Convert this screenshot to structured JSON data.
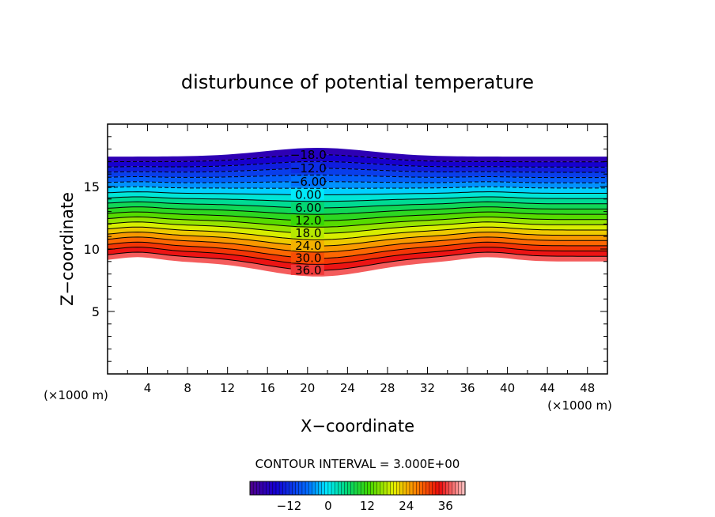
{
  "chart_data": {
    "type": "contour",
    "title": "disturbunce of potential temperature",
    "xlabel": "X−coordinate",
    "ylabel": "Z−coordinate",
    "x_unit": "(×1000 m)",
    "y_unit": "(×1000 m)",
    "xlim": [
      0,
      50
    ],
    "ylim": [
      0,
      20
    ],
    "x_ticks": [
      4,
      8,
      12,
      16,
      20,
      24,
      28,
      32,
      36,
      40,
      44,
      48
    ],
    "y_ticks": [
      5,
      10,
      15
    ],
    "contour_interval_text": "CONTOUR INTERVAL = 3.000E+00",
    "contour_interval": 3,
    "levels": [
      -21,
      -18,
      -15,
      -12,
      -9,
      -6,
      -3,
      0,
      3,
      6,
      9,
      12,
      15,
      18,
      21,
      24,
      27,
      30,
      33,
      36,
      39
    ],
    "negative_contours": "dashed",
    "contour_labels": [
      {
        "text": "−18.0",
        "value": -18
      },
      {
        "text": "−12.0",
        "value": -12
      },
      {
        "text": "−6.00",
        "value": -6
      },
      {
        "text": "0.00",
        "value": 0
      },
      {
        "text": "6.00",
        "value": 6
      },
      {
        "text": "12.0",
        "value": 12
      },
      {
        "text": "18.0",
        "value": 18
      },
      {
        "text": "24.0",
        "value": 24
      },
      {
        "text": "30.0",
        "value": 30
      },
      {
        "text": "36.0",
        "value": 36
      }
    ],
    "colorbar": {
      "min": -24,
      "max": 42,
      "tick_labels": [
        "−12",
        "0",
        "12",
        "24",
        "36"
      ],
      "tick_values": [
        -12,
        0,
        12,
        24,
        36
      ]
    },
    "field_top_z": 17.4,
    "field_bottom_z": 9.0,
    "value_at_top": -21,
    "value_at_bottom": 39
  }
}
